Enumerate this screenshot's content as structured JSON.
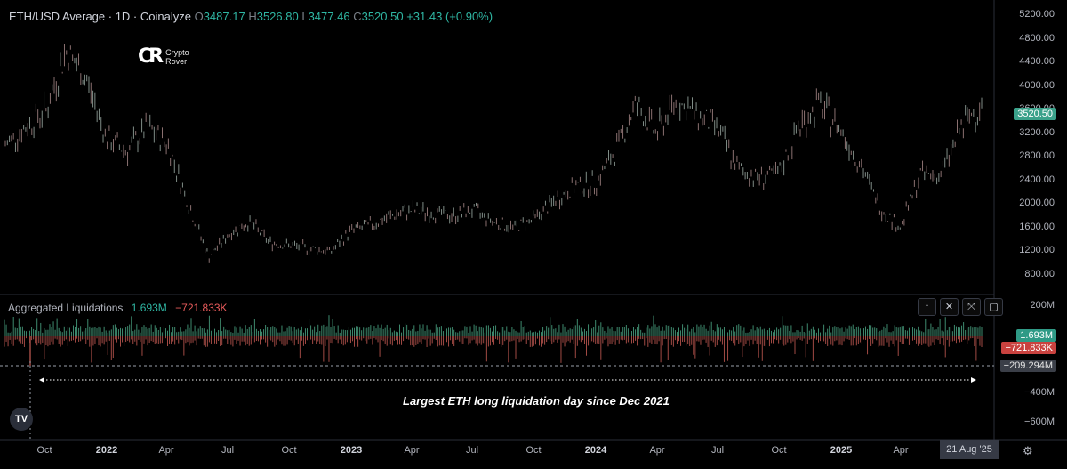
{
  "header": {
    "symbol": "ETH/USD Average · 1D · Coinalyze",
    "open_label": "O",
    "open": "3487.17",
    "high_label": "H",
    "high": "3526.80",
    "low_label": "L",
    "low": "3477.46",
    "close_label": "C",
    "close": "3520.50",
    "change": "+31.43 (+0.90%)"
  },
  "watermark": {
    "line1": "Crypto",
    "line2": "Rover",
    "mark": "CR"
  },
  "liquidations": {
    "title": "Aggregated Liquidations",
    "long_value": "1.693M",
    "short_value": "−721.833K",
    "level_value": "−209.294M",
    "tools": [
      "↑",
      "✕",
      "⤧",
      "▢"
    ]
  },
  "annotation": "Largest ETH long liquidation day since Dec 2021",
  "x_cursor_label": "21 Aug '25",
  "tv_logo": "TV",
  "colors": {
    "up": "#2fb6a3",
    "down": "#e85b5b",
    "candle": "#8a7b76",
    "grid": "#2a2e39"
  },
  "chart_data": [
    {
      "type": "line",
      "title": "ETH/USD Average · 1D · Coinalyze",
      "y_axis_ticks": [
        "5200.00",
        "4800.00",
        "4400.00",
        "4000.00",
        "3600.00",
        "3200.00",
        "2800.00",
        "2400.00",
        "2000.00",
        "1600.00",
        "1200.00",
        "800.00"
      ],
      "ylim": [
        620,
        5300
      ],
      "last_price": "3520.50",
      "x_axis_labels": [
        "Oct",
        "2022",
        "Apr",
        "Jul",
        "Oct",
        "2023",
        "Apr",
        "Jul",
        "Oct",
        "2024",
        "Apr",
        "Jul",
        "Oct",
        "2025",
        "Apr"
      ],
      "x": [
        "2021-08",
        "2021-09",
        "2021-10",
        "2021-11",
        "2021-12",
        "2022-01",
        "2022-02",
        "2022-03",
        "2022-04",
        "2022-05",
        "2022-06",
        "2022-07",
        "2022-08",
        "2022-09",
        "2022-10",
        "2022-11",
        "2022-12",
        "2023-01",
        "2023-02",
        "2023-03",
        "2023-04",
        "2023-05",
        "2023-06",
        "2023-07",
        "2023-08",
        "2023-09",
        "2023-10",
        "2023-11",
        "2023-12",
        "2024-01",
        "2024-02",
        "2024-03",
        "2024-04",
        "2024-05",
        "2024-06",
        "2024-07",
        "2024-08",
        "2024-09",
        "2024-10",
        "2024-11",
        "2024-12",
        "2025-01",
        "2025-02",
        "2025-03",
        "2025-04",
        "2025-05",
        "2025-06",
        "2025-07",
        "2025-08"
      ],
      "values": [
        3000,
        3300,
        3600,
        4600,
        4100,
        3100,
        2900,
        3300,
        3000,
        2000,
        1100,
        1500,
        1700,
        1350,
        1300,
        1250,
        1200,
        1550,
        1650,
        1800,
        1900,
        1850,
        1800,
        1900,
        1700,
        1600,
        1750,
        2050,
        2300,
        2350,
        2900,
        3700,
        3200,
        3750,
        3500,
        3300,
        2600,
        2450,
        2500,
        3300,
        3700,
        3300,
        2700,
        1950,
        1600,
        2500,
        2500,
        3300,
        3700
      ]
    },
    {
      "type": "bar",
      "title": "Aggregated Liquidations",
      "y_axis_ticks": [
        "200M",
        "−400M",
        "−600M"
      ],
      "ylim": [
        -700,
        300
      ],
      "long_value": "1.693M",
      "short_value": "−721.833K",
      "level_value": "−209.294M"
    }
  ]
}
